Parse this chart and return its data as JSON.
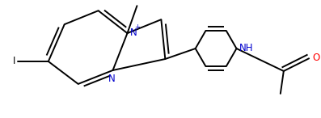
{
  "bg_color": "#ffffff",
  "line_color": "#000000",
  "N_color": "#0000cd",
  "O_color": "#ff0000",
  "lw": 1.4,
  "figsize": [
    3.97,
    1.46
  ],
  "dpi": 100,
  "xlim": [
    0,
    3.97
  ],
  "ylim": [
    0,
    1.46
  ],
  "fs": 8.5
}
